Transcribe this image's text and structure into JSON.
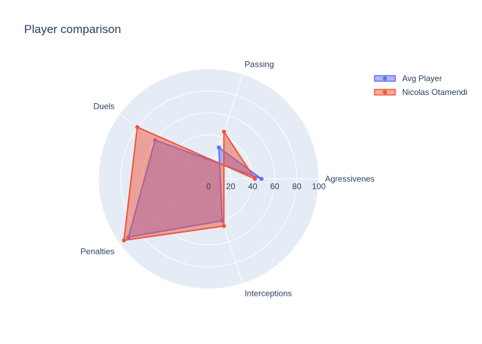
{
  "chart_data": {
    "type": "radar",
    "title": "Player comparison",
    "axes": [
      "Agressivenes",
      "Passing",
      "Interceptions",
      "Penalties",
      "Duels"
    ],
    "axis_angles_deg": [
      0,
      72,
      -72,
      -144,
      144
    ],
    "radial_range": [
      0,
      100
    ],
    "radial_ticks": [
      0,
      20,
      40,
      60,
      80,
      100
    ],
    "series": [
      {
        "name": "Avg Player",
        "values": [
          48,
          30,
          40,
          90,
          60
        ],
        "color": "#636efa"
      },
      {
        "name": "Nicolas Otamendi",
        "values": [
          42,
          45,
          45,
          95,
          80
        ],
        "color": "#ef553b"
      }
    ],
    "legend_position": "top-right",
    "background_color": "#e5ecf6"
  }
}
